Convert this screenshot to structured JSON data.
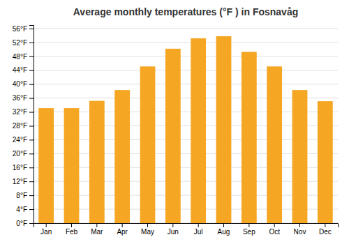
{
  "chart_data": {
    "type": "bar",
    "title": "Average monthly temperatures (°F ) in Fosnavåg",
    "categories": [
      "Jan",
      "Feb",
      "Mar",
      "Apr",
      "May",
      "Jun",
      "Jul",
      "Aug",
      "Sep",
      "Oct",
      "Nov",
      "Dec"
    ],
    "values": [
      33.1,
      33.1,
      35.2,
      38.3,
      45.1,
      50.2,
      53.2,
      53.8,
      49.3,
      45.1,
      38.3,
      35.1
    ],
    "color": "#F5A623",
    "ylim": [
      0,
      57
    ],
    "yticks": [
      {
        "value": 0,
        "label": "0°F"
      },
      {
        "value": 4,
        "label": "4°F"
      },
      {
        "value": 8,
        "label": "8°F"
      },
      {
        "value": 12,
        "label": "12°F"
      },
      {
        "value": 16,
        "label": "16°F"
      },
      {
        "value": 20,
        "label": "20°F"
      },
      {
        "value": 24,
        "label": "24°F"
      },
      {
        "value": 28,
        "label": "28°F"
      },
      {
        "value": 32,
        "label": "32°F"
      },
      {
        "value": 36,
        "label": "36°F"
      },
      {
        "value": 40,
        "label": "40°F"
      },
      {
        "value": 44,
        "label": "44°F"
      },
      {
        "value": 48,
        "label": "48°F"
      },
      {
        "value": 52,
        "label": "52°F"
      },
      {
        "value": 56,
        "label": "56°F"
      }
    ],
    "grid": true
  }
}
